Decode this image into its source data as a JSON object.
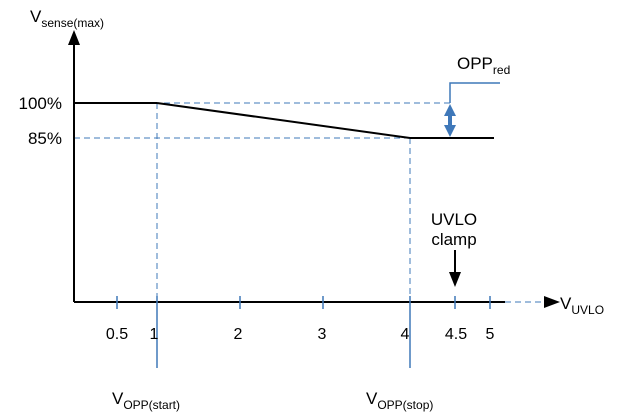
{
  "labels": {
    "y_axis": {
      "main": "V",
      "sub": "sense(max)"
    },
    "x_axis": {
      "main": "V",
      "sub": "UVLO"
    },
    "opp_red": {
      "main": "OPP",
      "sub": "red"
    },
    "pct_100": "100%",
    "pct_85": "85%",
    "uvlo_line1": "UVLO",
    "uvlo_line2": "clamp",
    "opp_start": {
      "main": "V",
      "sub": "OPP(start)"
    },
    "opp_stop": {
      "main": "V",
      "sub": "OPP(stop)"
    }
  },
  "x_ticks": [
    "0.5",
    "1",
    "2",
    "3",
    "4",
    "4.5",
    "5"
  ],
  "colors": {
    "line": "#000000",
    "accent": "#3f78b9",
    "dashed": "#3f78b9"
  }
}
